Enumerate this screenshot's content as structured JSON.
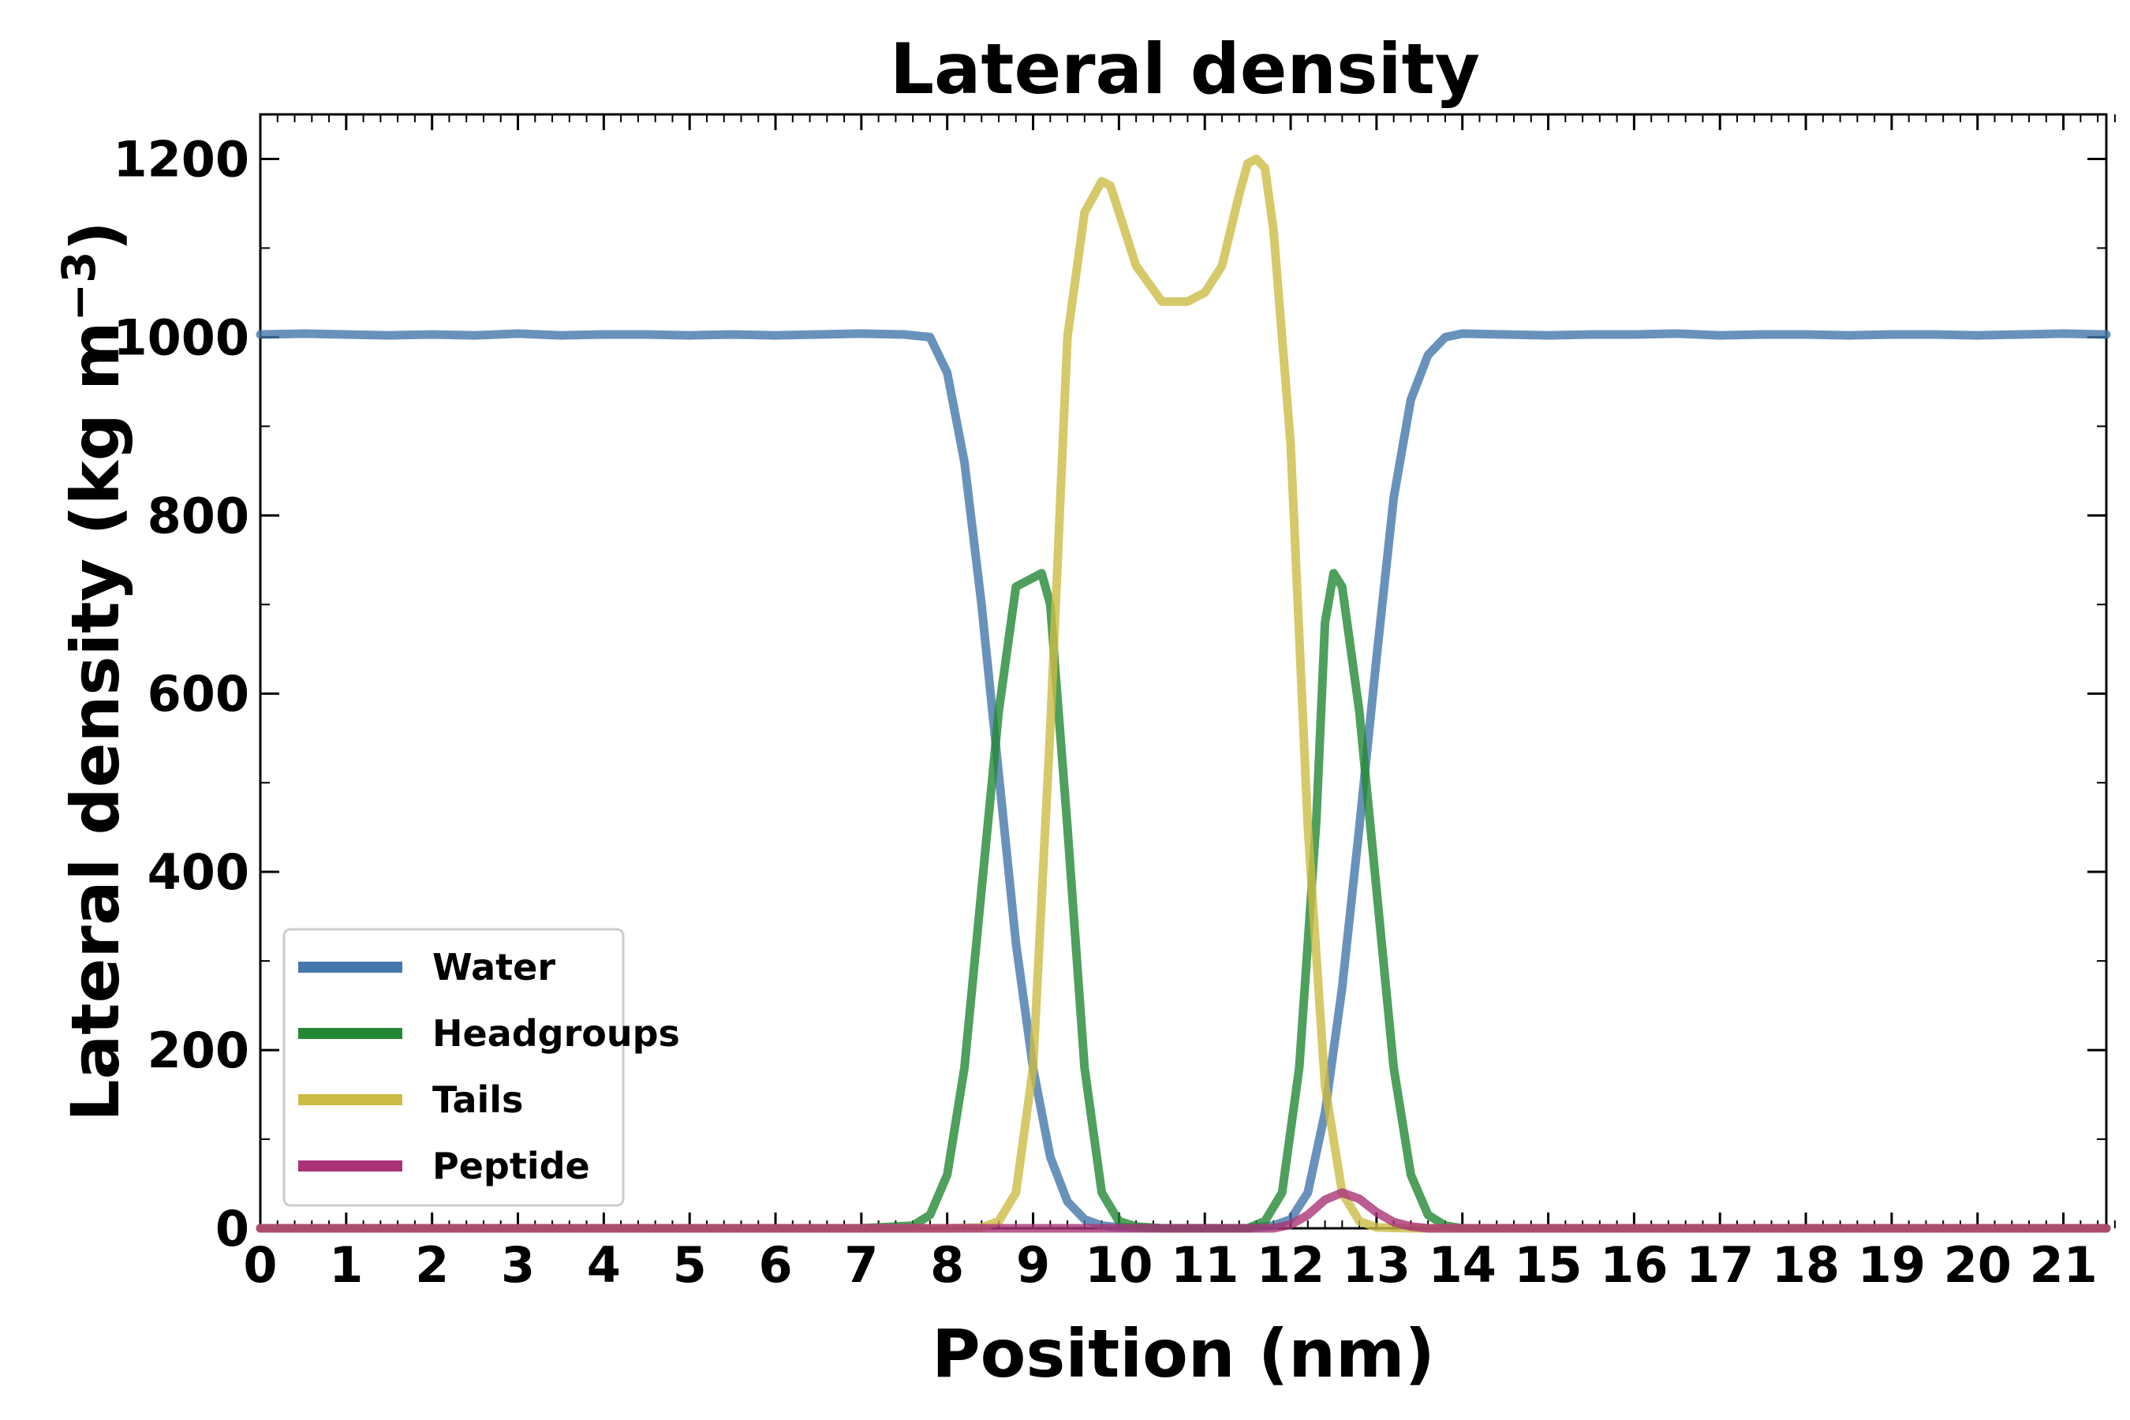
{
  "chart_data": {
    "type": "line",
    "title": "Lateral density",
    "xlabel": "Position (nm)",
    "ylabel": "Lateral density (kg m",
    "ylabel_unit_exponent": "−3",
    "ylabel_close": ")",
    "xlim": [
      0,
      21.5
    ],
    "ylim": [
      0,
      1250
    ],
    "xticks": [
      0,
      1,
      2,
      3,
      4,
      5,
      6,
      7,
      8,
      9,
      10,
      11,
      12,
      13,
      14,
      15,
      16,
      17,
      18,
      19,
      20,
      21
    ],
    "yticks": [
      0,
      200,
      400,
      600,
      800,
      1000,
      1200
    ],
    "grid": false,
    "legend_position": "lower-left",
    "series": [
      {
        "name": "Water",
        "color": "#4477aa",
        "x": [
          0,
          0.5,
          1,
          1.5,
          2,
          2.5,
          3,
          3.5,
          4,
          4.5,
          5,
          5.5,
          6,
          6.5,
          7,
          7.5,
          7.8,
          8.0,
          8.2,
          8.4,
          8.6,
          8.8,
          9.0,
          9.2,
          9.4,
          9.6,
          9.8,
          10.0,
          10.5,
          11.0,
          11.5,
          11.8,
          12.0,
          12.2,
          12.4,
          12.6,
          12.8,
          13.0,
          13.2,
          13.4,
          13.6,
          13.8,
          14.0,
          14.5,
          15,
          15.5,
          16,
          16.5,
          17,
          17.5,
          18,
          18.5,
          19,
          19.5,
          20,
          20.5,
          21,
          21.5
        ],
        "y": [
          1003,
          1004,
          1003,
          1002,
          1003,
          1002,
          1004,
          1002,
          1003,
          1003,
          1002,
          1003,
          1002,
          1003,
          1004,
          1003,
          1000,
          960,
          860,
          700,
          510,
          320,
          180,
          80,
          30,
          10,
          3,
          1,
          0,
          0,
          0,
          3,
          10,
          40,
          130,
          270,
          450,
          640,
          820,
          930,
          980,
          1000,
          1004,
          1003,
          1002,
          1003,
          1003,
          1004,
          1002,
          1003,
          1003,
          1002,
          1003,
          1003,
          1002,
          1003,
          1004,
          1003
        ]
      },
      {
        "name": "Headgroups",
        "color": "#228833",
        "x": [
          0,
          1,
          2,
          3,
          4,
          5,
          6,
          7,
          7.6,
          7.8,
          8.0,
          8.2,
          8.4,
          8.6,
          8.8,
          9.0,
          9.1,
          9.2,
          9.4,
          9.6,
          9.8,
          10.0,
          10.2,
          10.5,
          11,
          11.5,
          11.7,
          11.9,
          12.1,
          12.3,
          12.4,
          12.5,
          12.6,
          12.8,
          13.0,
          13.2,
          13.4,
          13.6,
          13.8,
          14.0,
          15,
          16,
          17,
          18,
          19,
          20,
          21,
          21.5
        ],
        "y": [
          0,
          0,
          0,
          0,
          0,
          0,
          0,
          0,
          3,
          15,
          60,
          180,
          380,
          580,
          720,
          730,
          735,
          700,
          450,
          180,
          40,
          8,
          2,
          0,
          0,
          0,
          8,
          40,
          180,
          460,
          680,
          735,
          720,
          580,
          380,
          180,
          60,
          15,
          3,
          0,
          0,
          0,
          0,
          0,
          0,
          0,
          0,
          0
        ]
      },
      {
        "name": "Tails",
        "color": "#ccbb44",
        "x": [
          0,
          1,
          2,
          3,
          4,
          5,
          6,
          7,
          8.0,
          8.4,
          8.6,
          8.8,
          9.0,
          9.2,
          9.4,
          9.6,
          9.8,
          9.9,
          10.0,
          10.2,
          10.5,
          10.8,
          11.0,
          11.2,
          11.4,
          11.5,
          11.6,
          11.7,
          11.8,
          12.0,
          12.2,
          12.4,
          12.6,
          12.8,
          13.0,
          13.4,
          14,
          15,
          16,
          17,
          18,
          19,
          20,
          21,
          21.5
        ],
        "y": [
          0,
          0,
          0,
          0,
          0,
          0,
          0,
          0,
          0,
          1,
          8,
          40,
          180,
          560,
          1000,
          1140,
          1175,
          1170,
          1140,
          1080,
          1040,
          1040,
          1050,
          1080,
          1160,
          1195,
          1200,
          1190,
          1120,
          880,
          450,
          160,
          40,
          8,
          1,
          0,
          0,
          0,
          0,
          0,
          0,
          0,
          0,
          0,
          0
        ]
      },
      {
        "name": "Peptide",
        "color": "#aa3377",
        "x": [
          0,
          1,
          2,
          3,
          4,
          5,
          6,
          7,
          8,
          9,
          10,
          11,
          11.8,
          12.0,
          12.2,
          12.4,
          12.6,
          12.8,
          13.0,
          13.2,
          13.4,
          13.6,
          14,
          15,
          16,
          17,
          18,
          19,
          20,
          21,
          21.5
        ],
        "y": [
          0,
          0,
          0,
          0,
          0,
          0,
          0,
          0,
          0,
          0,
          0,
          0,
          0,
          4,
          15,
          32,
          40,
          33,
          18,
          7,
          2,
          0,
          0,
          0,
          0,
          0,
          0,
          0,
          0,
          0,
          0
        ]
      }
    ]
  }
}
